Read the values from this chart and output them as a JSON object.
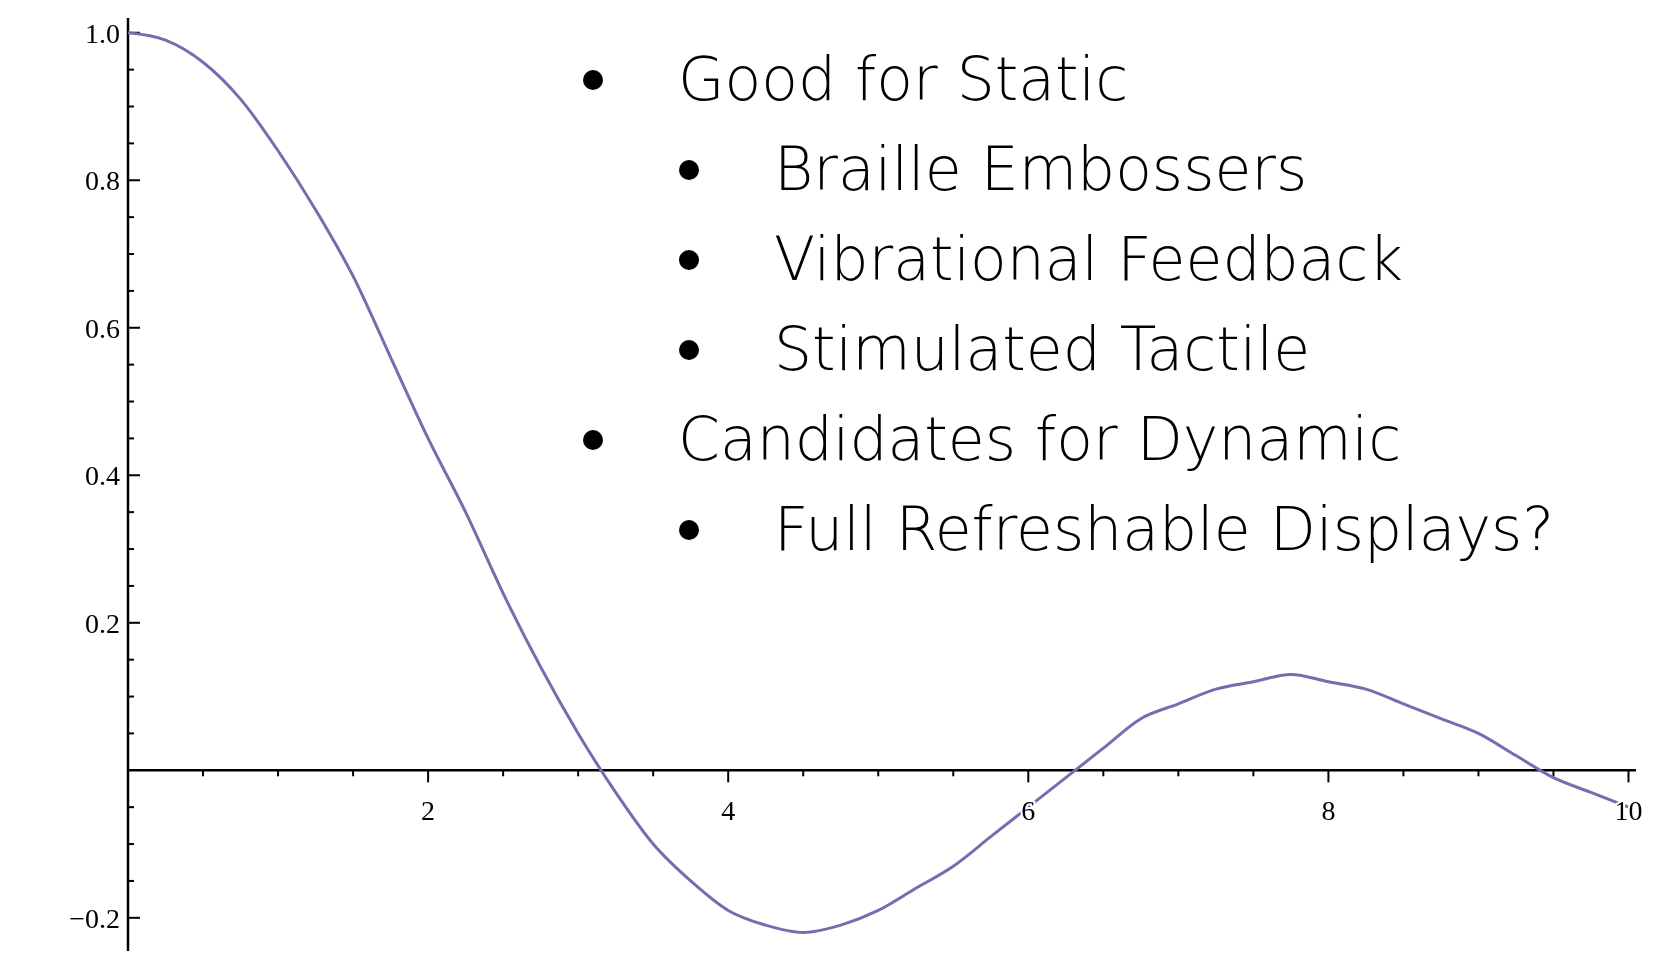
{
  "chart_data": {
    "type": "line",
    "x": [
      0,
      0.25,
      0.5,
      0.75,
      1,
      1.25,
      1.5,
      1.75,
      2,
      2.25,
      2.5,
      2.75,
      3,
      3.25,
      3.5,
      3.75,
      4,
      4.25,
      4.5,
      4.75,
      5,
      5.25,
      5.5,
      5.75,
      6,
      6.25,
      6.5,
      6.75,
      7,
      7.25,
      7.5,
      7.75,
      8,
      8.25,
      8.5,
      8.75,
      9,
      9.25,
      9.5,
      9.75,
      10
    ],
    "series": [
      {
        "color": "#7070b0",
        "values": [
          1,
          0.99,
          0.96,
          0.91,
          0.84,
          0.76,
          0.67,
          0.56,
          0.45,
          0.35,
          0.24,
          0.14,
          0.05,
          -0.03,
          -0.1,
          -0.15,
          -0.19,
          -0.21,
          -0.22,
          -0.21,
          -0.19,
          -0.16,
          -0.13,
          -0.09,
          -0.05,
          -0.01,
          0.03,
          0.07,
          0.09,
          0.11,
          0.12,
          0.13,
          0.12,
          0.11,
          0.09,
          0.07,
          0.05,
          0.02,
          -0.01,
          -0.03,
          -0.05
        ]
      }
    ],
    "xlim": [
      0,
      10.05
    ],
    "ylim": [
      -0.245,
      1.02
    ],
    "xticks": [
      {
        "value": 0.5,
        "label": null
      },
      {
        "value": 1,
        "label": null
      },
      {
        "value": 1.5,
        "label": null
      },
      2,
      {
        "value": 2.5,
        "label": null
      },
      {
        "value": 3,
        "label": null
      },
      {
        "value": 3.5,
        "label": null
      },
      4,
      {
        "value": 4.5,
        "label": null
      },
      {
        "value": 5,
        "label": null
      },
      {
        "value": 5.5,
        "label": null
      },
      6,
      {
        "value": 6.5,
        "label": null
      },
      {
        "value": 7,
        "label": null
      },
      {
        "value": 7.5,
        "label": null
      },
      8,
      {
        "value": 8.5,
        "label": null
      },
      {
        "value": 9,
        "label": null
      },
      {
        "value": 9.5,
        "label": null
      },
      10
    ],
    "yticks": [
      {
        "value": -0.2,
        "label": "−0.2"
      },
      {
        "value": -0.15,
        "label": null
      },
      {
        "value": -0.1,
        "label": null
      },
      {
        "value": -0.05,
        "label": null
      },
      {
        "value": 0.05,
        "label": null
      },
      {
        "value": 0.1,
        "label": null
      },
      {
        "value": 0.15,
        "label": null
      },
      0.2,
      {
        "value": 0.25,
        "label": null
      },
      {
        "value": 0.3,
        "label": null
      },
      {
        "value": 0.35,
        "label": null
      },
      0.4,
      {
        "value": 0.45,
        "label": null
      },
      {
        "value": 0.5,
        "label": null
      },
      {
        "value": 0.55,
        "label": null
      },
      0.6,
      {
        "value": 0.65,
        "label": null
      },
      {
        "value": 0.7,
        "label": null
      },
      {
        "value": 0.75,
        "label": null
      },
      0.8,
      {
        "value": 0.85,
        "label": null
      },
      {
        "value": 0.9,
        "label": null
      },
      {
        "value": 0.95,
        "label": null
      },
      {
        "value": 1,
        "label": "1.0"
      }
    ],
    "annotations": [
      "Good for Static",
      "Braille Embossers",
      "Vibrational Feedback",
      "Stimulated Tactile",
      "Candidates for Dynamic",
      "Full Refreshable Displays?"
    ],
    "marker": "none",
    "line_style": "solid",
    "grid": false
  }
}
